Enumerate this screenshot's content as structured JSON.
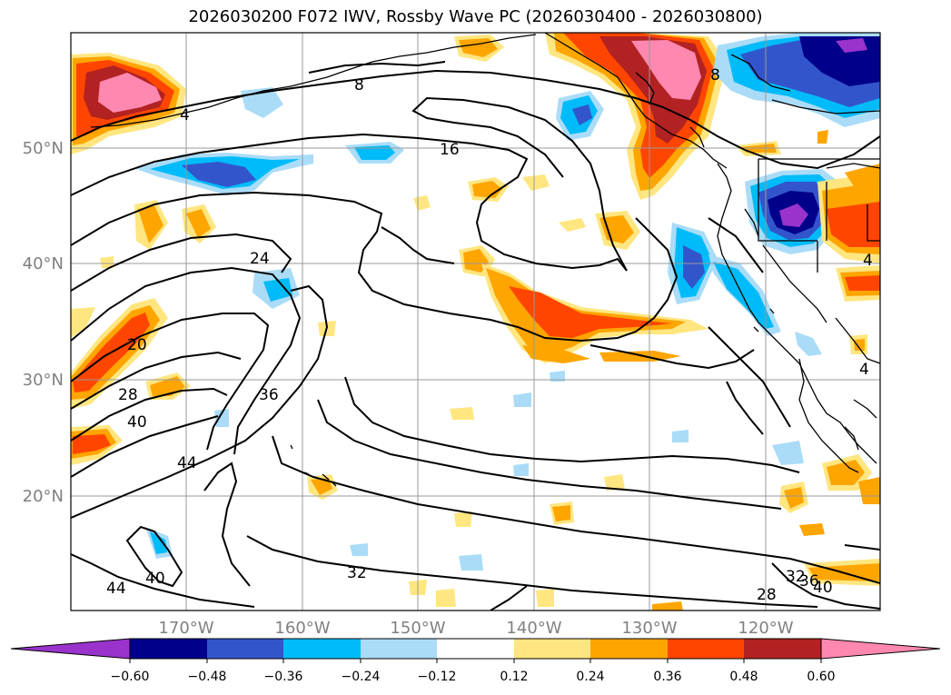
{
  "title": "2026030200 F072 IWV, Rossby Wave PC (2026030400 - 2026030800)",
  "lat_labels": [
    "50°N",
    "40°N",
    "30°N",
    "20°N"
  ],
  "lon_labels": [
    "170°W",
    "160°W",
    "150°W",
    "140°W",
    "130°W",
    "120°W"
  ],
  "contour_labels": [
    "8",
    "4",
    "16",
    "24",
    "20",
    "28",
    "40",
    "36",
    "44",
    "32",
    "44",
    "40",
    "28",
    "32",
    "36",
    "40",
    "8",
    "4",
    "4"
  ],
  "colorbar": {
    "tick_labels": [
      "−0.60",
      "−0.48",
      "−0.36",
      "−0.24",
      "−0.12",
      "0.12",
      "0.24",
      "0.36",
      "0.48",
      "0.60"
    ],
    "colors": [
      "#9933cc",
      "#00008b",
      "#3355cc",
      "#00bbf9",
      "#aadcf8",
      "#ffffff",
      "#ffe680",
      "#ffa500",
      "#ff4500",
      "#b22222",
      "#ff88b0",
      "#ff88b0"
    ]
  }
}
